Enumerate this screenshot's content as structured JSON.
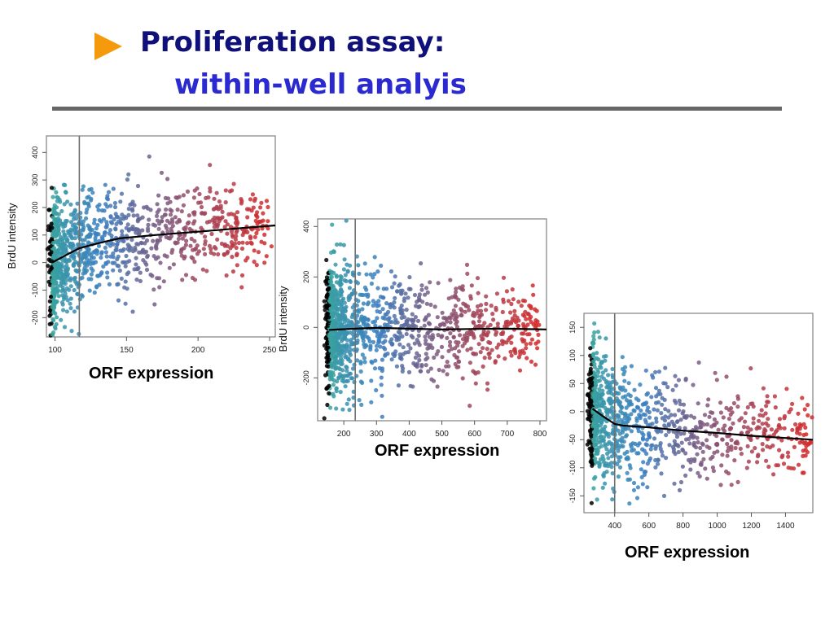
{
  "slide": {
    "title_line1": "Proliferation assay:",
    "title_line2": "within-well analyis"
  },
  "colors": {
    "bullet": "#f59a0c",
    "title_line1": "#10107a",
    "title_line2": "#2a2ad0",
    "rule": "#666666",
    "low_expression": "#3aa89a",
    "mid_expression": "#3b7fc0",
    "high_expression": "#d42a2a",
    "fit_line": "#000000",
    "threshold_line": "#707070"
  },
  "icons": {
    "bullet": "orange-triangle-bullet-icon"
  },
  "chart_data": [
    {
      "type": "scatter",
      "title": "",
      "xlabel": "ORF expression",
      "ylabel": "BrdU intensity",
      "xlim": [
        94,
        254
      ],
      "ylim": [
        -270,
        460
      ],
      "x_ticks": [
        100,
        150,
        200,
        250
      ],
      "y_ticks": [
        -200,
        -100,
        0,
        100,
        200,
        300,
        400
      ],
      "threshold_x": 117,
      "grid": false,
      "fit_line": [
        [
          98,
          0
        ],
        [
          108,
          28
        ],
        [
          117,
          52
        ],
        [
          130,
          70
        ],
        [
          145,
          88
        ],
        [
          170,
          100
        ],
        [
          200,
          112
        ],
        [
          230,
          125
        ],
        [
          254,
          135
        ]
      ],
      "points_approx": 1900,
      "x_max_observed": 250
    },
    {
      "type": "scatter",
      "title": "",
      "xlabel": "ORF expression",
      "ylabel": "BrdU intensity",
      "xlim": [
        120,
        820
      ],
      "ylim": [
        -370,
        430
      ],
      "x_ticks": [
        200,
        300,
        400,
        500,
        600,
        700,
        800
      ],
      "y_ticks": [
        -200,
        0,
        200,
        400
      ],
      "threshold_x": 235,
      "grid": false,
      "fit_line": [
        [
          155,
          -10
        ],
        [
          235,
          -5
        ],
        [
          300,
          -2
        ],
        [
          400,
          -5
        ],
        [
          500,
          -8
        ],
        [
          600,
          -6
        ],
        [
          700,
          -5
        ],
        [
          820,
          -8
        ]
      ],
      "points_approx": 2100,
      "x_max_observed": 800
    },
    {
      "type": "scatter",
      "title": "",
      "xlabel": "ORF expression",
      "ylabel": "",
      "xlim": [
        220,
        1560
      ],
      "ylim": [
        -180,
        175
      ],
      "x_ticks": [
        400,
        600,
        800,
        1000,
        1200,
        1400
      ],
      "y_ticks": [
        -150,
        -100,
        -50,
        0,
        50,
        100,
        150
      ],
      "threshold_x": 400,
      "grid": false,
      "fit_line": [
        [
          270,
          5
        ],
        [
          330,
          -8
        ],
        [
          400,
          -22
        ],
        [
          450,
          -25
        ],
        [
          600,
          -28
        ],
        [
          800,
          -34
        ],
        [
          1000,
          -38
        ],
        [
          1200,
          -43
        ],
        [
          1400,
          -47
        ],
        [
          1560,
          -50
        ]
      ],
      "points_approx": 1700,
      "x_max_observed": 1550
    }
  ]
}
